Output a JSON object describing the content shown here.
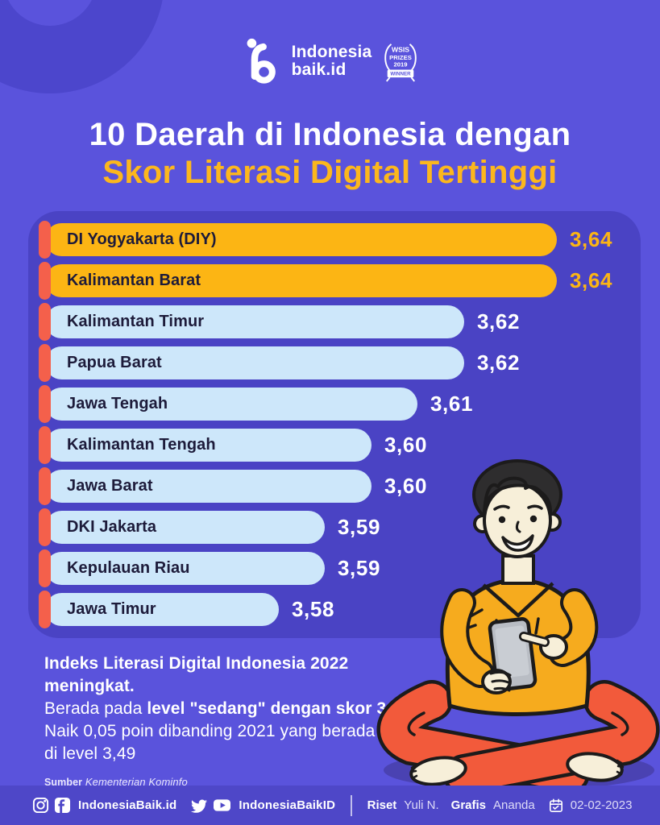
{
  "header": {
    "brand_line1": "Indonesia",
    "brand_line2": "baik.id",
    "award_badge": {
      "line1": "WSIS",
      "line2": "PRIZES",
      "line3": "2019",
      "banner": "WINNER"
    }
  },
  "title": {
    "line1": "10 Daerah di Indonesia dengan",
    "line2": "Skor Literasi Digital Tertinggi"
  },
  "chart_data": {
    "type": "bar",
    "orientation": "horizontal",
    "title": "10 Daerah di Indonesia dengan Skor Literasi Digital Tertinggi",
    "categories": [
      "DI Yogyakarta (DIY)",
      "Kalimantan Barat",
      "Kalimantan Timur",
      "Papua Barat",
      "Jawa Tengah",
      "Kalimantan Tengah",
      "Jawa Barat",
      "DKI Jakarta",
      "Kepulauan Riau",
      "Jawa Timur"
    ],
    "values": [
      3.64,
      3.64,
      3.62,
      3.62,
      3.61,
      3.6,
      3.6,
      3.59,
      3.59,
      3.58
    ],
    "display_values": [
      "3,64",
      "3,64",
      "3,62",
      "3,62",
      "3,61",
      "3,60",
      "3,60",
      "3,59",
      "3,59",
      "3,58"
    ],
    "value_range": [
      3.58,
      3.64
    ],
    "highlight_top_n": 2,
    "legend": "none",
    "grid": false,
    "colors": {
      "bar_highlight": "#FCB514",
      "bar_default": "#CDE7FA",
      "value_text_highlight": "#FCB514",
      "value_text_default": "#FFFFFF",
      "accent_tick": "#F4604B",
      "label_text": "#1D1B3A"
    }
  },
  "summary": {
    "line1_bold": "Indeks Literasi Digital Indonesia 2022 meningkat.",
    "line2_regular": "Berada pada ",
    "line2_bold": "level \"sedang\" dengan skor 3,54.",
    "line3": "Naik 0,05 poin dibanding 2021 yang berada",
    "line4": "di level 3,49",
    "source_label": "Sumber",
    "source_name": "Kementerian Kominfo"
  },
  "footer": {
    "social_handle_1": "IndonesiaBaik.id",
    "social_handle_2": "IndonesiaBaikID",
    "riset_label": "Riset",
    "riset_name": "Yuli N.",
    "grafis_label": "Grafis",
    "grafis_name": "Ananda",
    "date": "02-02-2023"
  },
  "colors": {
    "background": "#5A53DC",
    "panel": "#4A43C4",
    "deco_ring": "#4C46CC",
    "footer_bar": "#4E47C8",
    "title_accent": "#FCB71D"
  },
  "illustration": {
    "alt": "man-in-yellow-hoodie-sitting-cross-legged-pointing-at-smartphone"
  }
}
